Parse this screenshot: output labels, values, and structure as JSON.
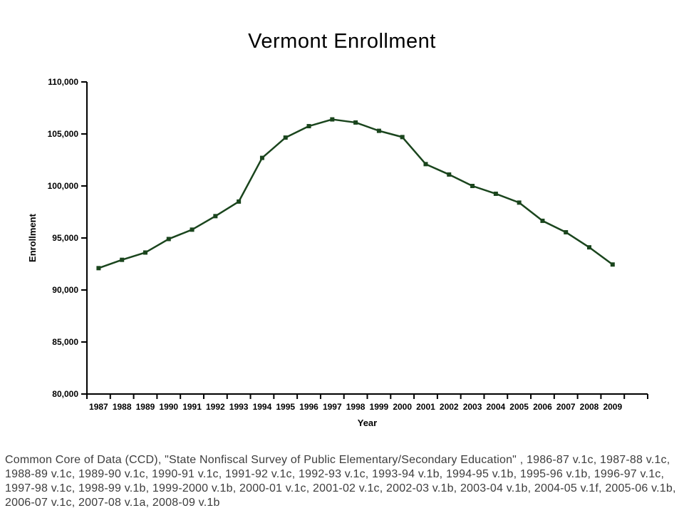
{
  "chart_data": {
    "type": "line",
    "title": "Vermont Enrollment",
    "xlabel": "Year",
    "ylabel": "Enrollment",
    "categories": [
      "1987",
      "1988",
      "1989",
      "1990",
      "1991",
      "1992",
      "1993",
      "1994",
      "1995",
      "1996",
      "1997",
      "1998",
      "1999",
      "2000",
      "2001",
      "2002",
      "2003",
      "2004",
      "2005",
      "2006",
      "2007",
      "2008",
      "2009"
    ],
    "values": [
      92100,
      92900,
      93600,
      94900,
      95800,
      97100,
      98500,
      102700,
      104650,
      105750,
      106400,
      106100,
      105300,
      104700,
      102100,
      101100,
      100000,
      99250,
      98400,
      96650,
      95550,
      94100,
      92450
    ],
    "ylim": [
      80000,
      110000
    ],
    "ytick_interval": 5000,
    "grid": false,
    "legend": "none",
    "marker": "square",
    "line_color": "#1a451d",
    "axis_color": "#000000",
    "tick_label_color": "#000000"
  },
  "footer": {
    "lines": [
      "Common Core of Data (CCD), \"State Nonfiscal Survey of Public Elementary/Secondary Education\" , 1986-87 v.1c, 1987-88 v.1c,",
      "1988-89 v.1c, 1989-90 v.1c, 1990-91 v.1c, 1991-92 v.1c, 1992-93 v.1c, 1993-94 v.1b, 1994-95 v.1b, 1995-96 v.1b, 1996-97 v.1c,",
      "1997-98 v.1c, 1998-99 v.1b, 1999-2000 v.1b, 2000-01 v.1c, 2001-02 v.1c, 2002-03 v.1b, 2003-04 v.1b, 2004-05 v.1f, 2005-06 v.1b,",
      "2006-07 v.1c, 2007-08 v.1a, 2008-09 v.1b"
    ]
  }
}
